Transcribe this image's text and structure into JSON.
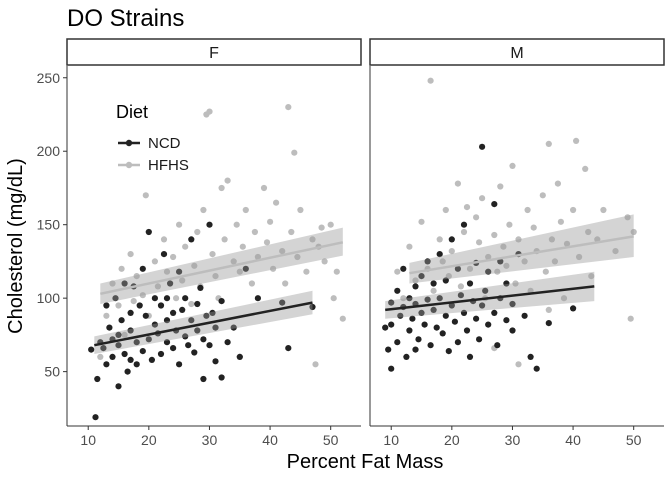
{
  "chart_data": {
    "type": "scatter",
    "title": "DO Strains",
    "xlabel": "Percent Fat Mass",
    "ylabel": "Cholesterol (mg/dL)",
    "xlim": [
      6.5,
      55
    ],
    "ylim": [
      13,
      258
    ],
    "x_ticks": [
      10,
      20,
      30,
      40,
      50
    ],
    "y_ticks": [
      50,
      100,
      150,
      200,
      250
    ],
    "grid": false,
    "legend": {
      "title": "Diet",
      "position": "inside-top-left"
    },
    "facets": [
      "F",
      "M"
    ],
    "colors": {
      "NCD": "#222222",
      "HFHS": "#bdbdbd"
    },
    "series": [
      {
        "name": "NCD",
        "fits": {
          "F": {
            "x": [
              11,
              47
            ],
            "y": [
              68,
              97
            ],
            "ci_lo": [
              62,
              89
            ],
            "ci_hi": [
              74,
              105
            ]
          },
          "M": {
            "x": [
              9,
              43.5
            ],
            "y": [
              92,
              108
            ],
            "ci_lo": [
              86,
              98
            ],
            "ci_hi": [
              98,
              118
            ]
          }
        },
        "points": {
          "F": [
            [
              10.5,
              65
            ],
            [
              11.2,
              19
            ],
            [
              11.5,
              45
            ],
            [
              12,
              70
            ],
            [
              12.5,
              66
            ],
            [
              13,
              95
            ],
            [
              13,
              55
            ],
            [
              13.5,
              80
            ],
            [
              14,
              60
            ],
            [
              14,
              72
            ],
            [
              14.5,
              100
            ],
            [
              15,
              75
            ],
            [
              15,
              68
            ],
            [
              15.5,
              85
            ],
            [
              16,
              110
            ],
            [
              16,
              62
            ],
            [
              16.5,
              50
            ],
            [
              17,
              78
            ],
            [
              17,
              90
            ],
            [
              17.5,
              108
            ],
            [
              18,
              70
            ],
            [
              18,
              55
            ],
            [
              18.5,
              95
            ],
            [
              19,
              64
            ],
            [
              19,
              120
            ],
            [
              19.5,
              88
            ],
            [
              20,
              72
            ],
            [
              20,
              145
            ],
            [
              20.5,
              58
            ],
            [
              21,
              82
            ],
            [
              21,
              100
            ],
            [
              21.5,
              76
            ],
            [
              22,
              95
            ],
            [
              22,
              62
            ],
            [
              22.5,
              130
            ],
            [
              23,
              85
            ],
            [
              23,
              70
            ],
            [
              23.5,
              110
            ],
            [
              24,
              66
            ],
            [
              24,
              90
            ],
            [
              24.5,
              78
            ],
            [
              25,
              118
            ],
            [
              25,
              55
            ],
            [
              25.5,
              92
            ],
            [
              26,
              74
            ],
            [
              26,
              100
            ],
            [
              26.5,
              68
            ],
            [
              27,
              85
            ],
            [
              27,
              140
            ],
            [
              27.5,
              63
            ],
            [
              28,
              96
            ],
            [
              28,
              78
            ],
            [
              28.5,
              107
            ],
            [
              29,
              72
            ],
            [
              29,
              45
            ],
            [
              29.5,
              88
            ],
            [
              30,
              68
            ],
            [
              30,
              150
            ],
            [
              30.5,
              90
            ],
            [
              31,
              80
            ],
            [
              31,
              57
            ],
            [
              32,
              98
            ],
            [
              32,
              46
            ],
            [
              33,
              70
            ],
            [
              34,
              80
            ],
            [
              35,
              60
            ],
            [
              36,
              120
            ],
            [
              38,
              100
            ],
            [
              42,
              97
            ],
            [
              43,
              66
            ],
            [
              47,
              94
            ],
            [
              15,
              40
            ],
            [
              17,
              58
            ],
            [
              23,
              100
            ]
          ],
          "M": [
            [
              9,
              80
            ],
            [
              9.5,
              65
            ],
            [
              10,
              97
            ],
            [
              10,
              52
            ],
            [
              11,
              105
            ],
            [
              11,
              70
            ],
            [
              11.5,
              88
            ],
            [
              12,
              94
            ],
            [
              12,
              120
            ],
            [
              12.5,
              60
            ],
            [
              13,
              100
            ],
            [
              13,
              78
            ],
            [
              13.5,
              86
            ],
            [
              14,
              108
            ],
            [
              14,
              96
            ],
            [
              14.5,
              72
            ],
            [
              15,
              90
            ],
            [
              15,
              115
            ],
            [
              15.5,
              82
            ],
            [
              16,
              125
            ],
            [
              16,
              99
            ],
            [
              16.5,
              68
            ],
            [
              17,
              110
            ],
            [
              17,
              92
            ],
            [
              17.5,
              80
            ],
            [
              18,
              130
            ],
            [
              18,
              100
            ],
            [
              18.5,
              76
            ],
            [
              19,
              88
            ],
            [
              19,
              112
            ],
            [
              19.5,
              64
            ],
            [
              20,
              95
            ],
            [
              20,
              140
            ],
            [
              20.5,
              84
            ],
            [
              21,
              120
            ],
            [
              21,
              70
            ],
            [
              21.5,
              102
            ],
            [
              22,
              90
            ],
            [
              22,
              150
            ],
            [
              22.5,
              78
            ],
            [
              23,
              110
            ],
            [
              23,
              60
            ],
            [
              23.5,
              98
            ],
            [
              24,
              86
            ],
            [
              24,
              124
            ],
            [
              24.5,
              72
            ],
            [
              25,
              203
            ],
            [
              25,
              95
            ],
            [
              25.5,
              105
            ],
            [
              26,
              82
            ],
            [
              26,
              118
            ],
            [
              27,
              90
            ],
            [
              27,
              164
            ],
            [
              27.5,
              68
            ],
            [
              28,
              100
            ],
            [
              28,
              125
            ],
            [
              29,
              85
            ],
            [
              29,
              110
            ],
            [
              30,
              78
            ],
            [
              30,
              96
            ],
            [
              31,
              130
            ],
            [
              32,
              88
            ],
            [
              33,
              60
            ],
            [
              34,
              52
            ],
            [
              36,
              83
            ],
            [
              40,
              93
            ],
            [
              10,
              82
            ],
            [
              14,
              65
            ]
          ]
        }
      },
      {
        "name": "HFHS",
        "fits": {
          "F": {
            "x": [
              12,
              52
            ],
            "y": [
              103,
              138
            ],
            "ci_lo": [
              96,
              129
            ],
            "ci_hi": [
              110,
              148
            ]
          },
          "M": {
            "x": [
              13,
              50
            ],
            "y": [
              117,
              142
            ],
            "ci_lo": [
              110,
              128
            ],
            "ci_hi": [
              124,
              157
            ]
          }
        },
        "points": {
          "F": [
            [
              12,
              60
            ],
            [
              13,
              88
            ],
            [
              14,
              110
            ],
            [
              15,
              95
            ],
            [
              15.5,
              120
            ],
            [
              16,
              75
            ],
            [
              17,
              130
            ],
            [
              17.5,
              98
            ],
            [
              18,
              115
            ],
            [
              19,
              102
            ],
            [
              19.5,
              170
            ],
            [
              20,
              88
            ],
            [
              21,
              125
            ],
            [
              21.5,
              108
            ],
            [
              22,
              95
            ],
            [
              22.5,
              140
            ],
            [
              23,
              118
            ],
            [
              24,
              128
            ],
            [
              24.5,
              100
            ],
            [
              25,
              150
            ],
            [
              25.5,
              112
            ],
            [
              26,
              135
            ],
            [
              27,
              96
            ],
            [
              27.5,
              122
            ],
            [
              28,
              145
            ],
            [
              28.5,
              108
            ],
            [
              29,
              160
            ],
            [
              29.5,
              225
            ],
            [
              30,
              227
            ],
            [
              30.5,
              130
            ],
            [
              31,
              115
            ],
            [
              31.5,
              100
            ],
            [
              32,
              175
            ],
            [
              32.5,
              140
            ],
            [
              33,
              180
            ],
            [
              34,
              125
            ],
            [
              34.5,
              150
            ],
            [
              35,
              118
            ],
            [
              35.5,
              135
            ],
            [
              36,
              160
            ],
            [
              37,
              110
            ],
            [
              37.5,
              145
            ],
            [
              38,
              128
            ],
            [
              39,
              175
            ],
            [
              39.5,
              138
            ],
            [
              40,
              152
            ],
            [
              40.5,
              120
            ],
            [
              41,
              165
            ],
            [
              42,
              132
            ],
            [
              42.5,
              110
            ],
            [
              43,
              230
            ],
            [
              43.5,
              145
            ],
            [
              44,
              199
            ],
            [
              44.5,
              128
            ],
            [
              45,
              160
            ],
            [
              46,
              118
            ],
            [
              47,
              140
            ],
            [
              47.5,
              55
            ],
            [
              48,
              135
            ],
            [
              49,
              125
            ],
            [
              50,
              150
            ],
            [
              50.5,
              100
            ],
            [
              51,
              118
            ],
            [
              52,
              86
            ],
            [
              48.5,
              148
            ],
            [
              35,
              60
            ]
          ],
          "M": [
            [
              11,
              118
            ],
            [
              12,
              100
            ],
            [
              13,
              135
            ],
            [
              14,
              112
            ],
            [
              15,
              152
            ],
            [
              16,
              120
            ],
            [
              16.5,
              248
            ],
            [
              17,
              105
            ],
            [
              18,
              140
            ],
            [
              18.5,
              125
            ],
            [
              19,
              160
            ],
            [
              19.5,
              115
            ],
            [
              20,
              132
            ],
            [
              21,
              178
            ],
            [
              21.5,
              108
            ],
            [
              22,
              145
            ],
            [
              22.5,
              162
            ],
            [
              23,
              120
            ],
            [
              24,
              155
            ],
            [
              24.5,
              138
            ],
            [
              25,
              168
            ],
            [
              25.5,
              100
            ],
            [
              26,
              128
            ],
            [
              27,
              143
            ],
            [
              27.5,
              118
            ],
            [
              28,
              176
            ],
            [
              28.5,
              135
            ],
            [
              29,
              122
            ],
            [
              29.5,
              150
            ],
            [
              30,
              190
            ],
            [
              30.5,
              110
            ],
            [
              31,
              140
            ],
            [
              32,
              125
            ],
            [
              32.5,
              160
            ],
            [
              33,
              105
            ],
            [
              33.5,
              148
            ],
            [
              34,
              132
            ],
            [
              35,
              170
            ],
            [
              35.5,
              118
            ],
            [
              36,
              205
            ],
            [
              36.5,
              140
            ],
            [
              37,
              125
            ],
            [
              37.5,
              178
            ],
            [
              38,
              152
            ],
            [
              38.5,
              100
            ],
            [
              39,
              137
            ],
            [
              40,
              160
            ],
            [
              40.5,
              207
            ],
            [
              41,
              128
            ],
            [
              42,
              188
            ],
            [
              42.5,
              145
            ],
            [
              43,
              115
            ],
            [
              44,
              140
            ],
            [
              45,
              160
            ],
            [
              47,
              132
            ],
            [
              49.5,
              86
            ],
            [
              49,
              155
            ],
            [
              50,
              145
            ],
            [
              36,
              92
            ],
            [
              27,
              66
            ],
            [
              31,
              55
            ]
          ]
        }
      }
    ]
  }
}
